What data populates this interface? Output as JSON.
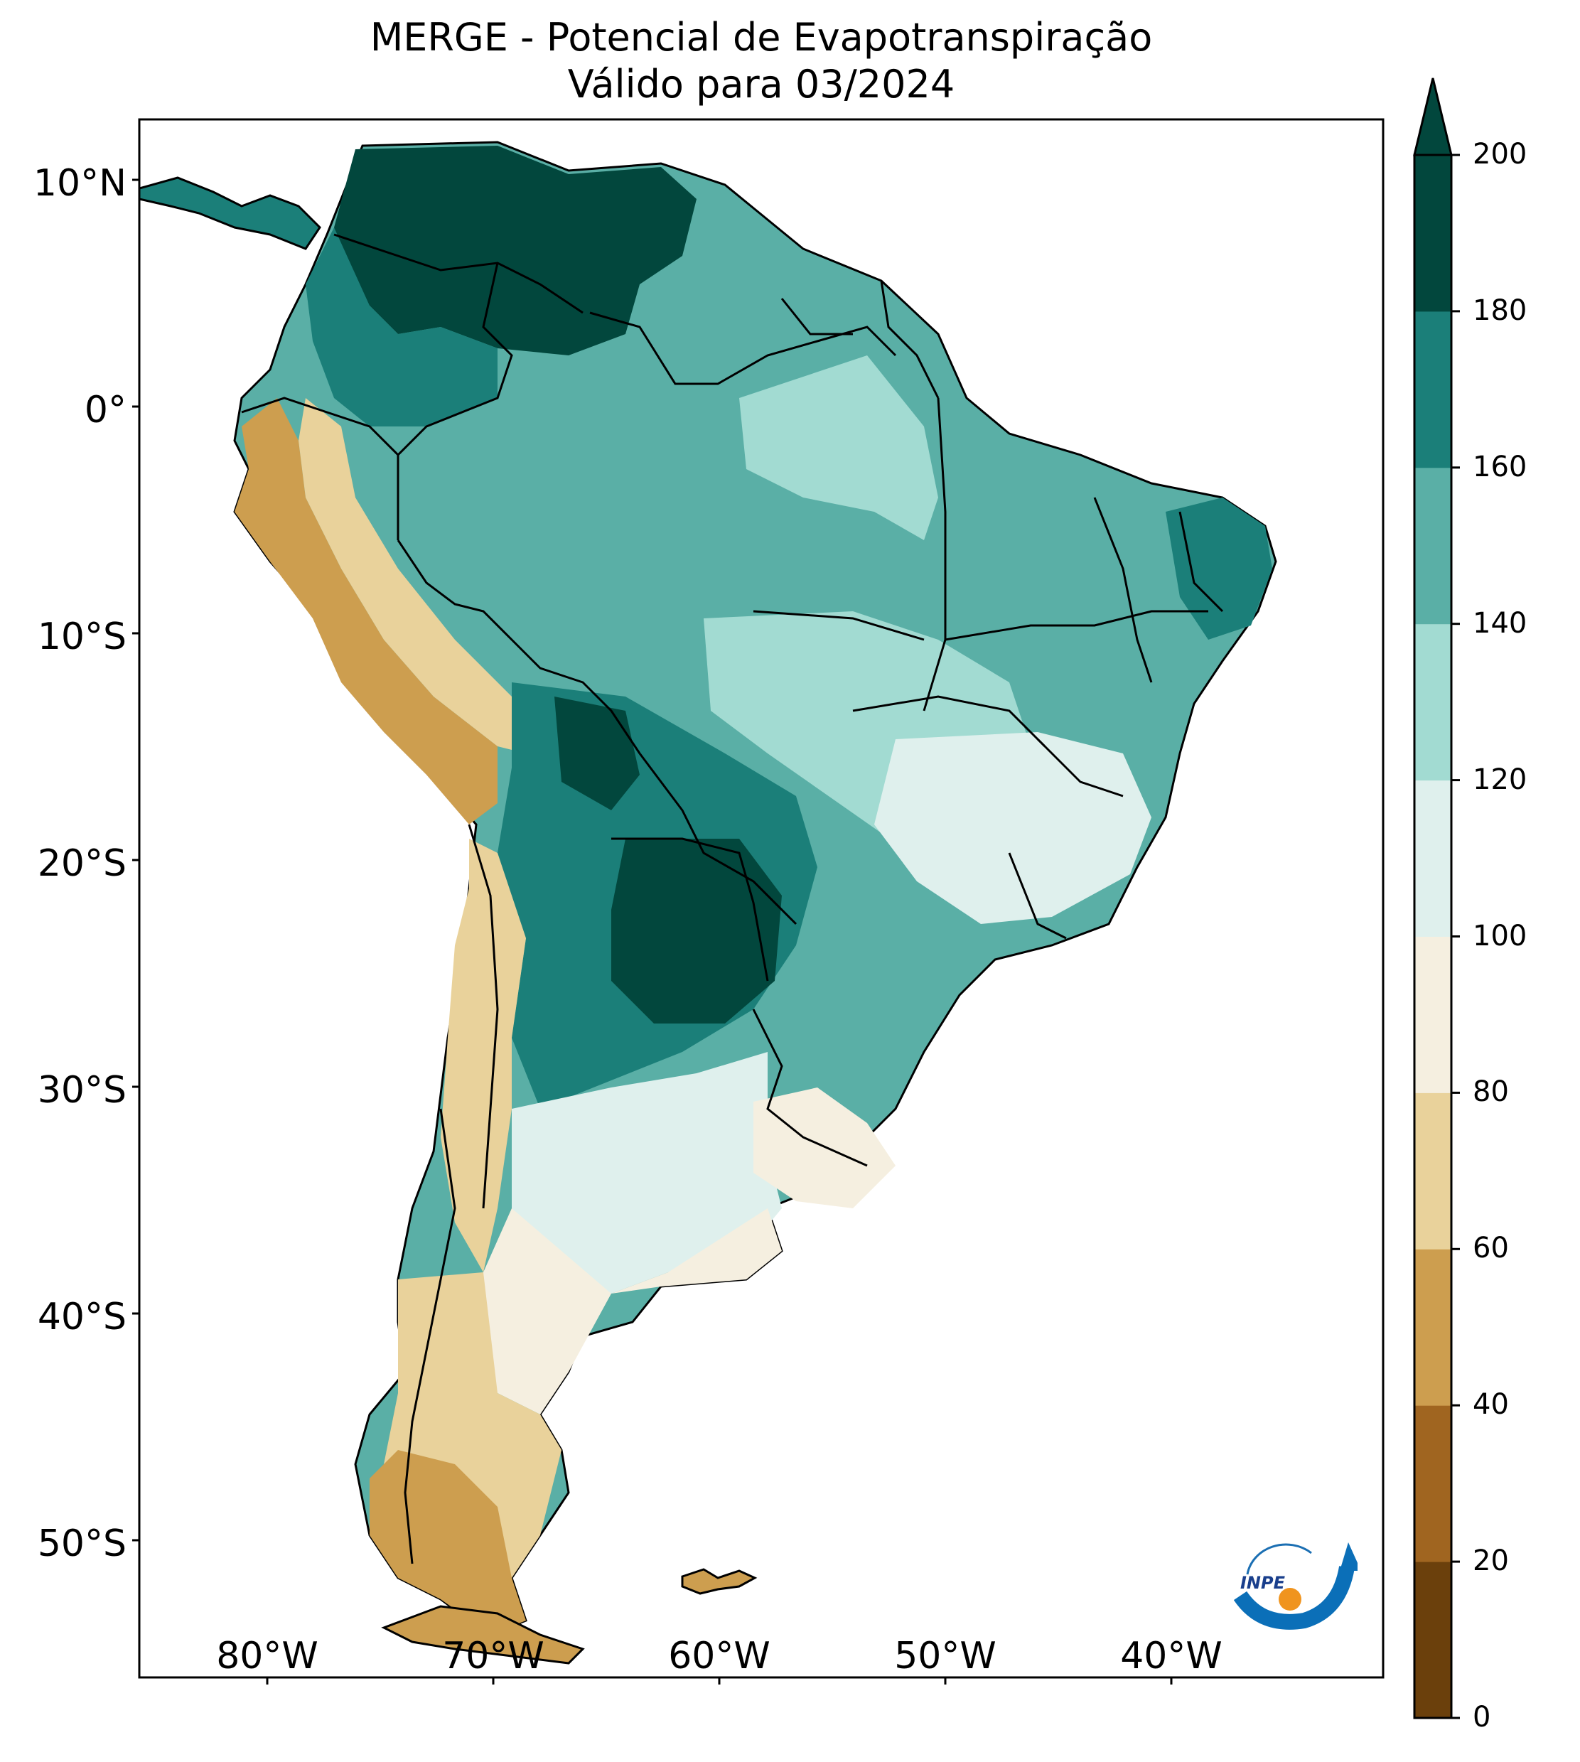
{
  "title": "MERGE - Potencial de Evapotranspiração",
  "subtitle": "Válido para 03/2024",
  "map": {
    "region": "South America",
    "lon_range": [
      -85,
      -30
    ],
    "lat_range": [
      -56,
      13
    ],
    "lat_ticks": [
      "10°N",
      "0°",
      "10°S",
      "20°S",
      "30°S",
      "40°S",
      "50°S"
    ],
    "lon_ticks": [
      "80°W",
      "70°W",
      "60°W",
      "50°W",
      "40°W"
    ],
    "logo_text": "INPE"
  },
  "colorbar": {
    "ticks": [
      "0",
      "20",
      "40",
      "60",
      "80",
      "100",
      "120",
      "140",
      "160",
      "180",
      "200"
    ],
    "colors": [
      "#6b400c",
      "#a06520",
      "#cd9e4f",
      "#e9d29b",
      "#f5efe0",
      "#dff0ed",
      "#a2dbd2",
      "#5aafa6",
      "#1b7f79",
      "#02473d"
    ],
    "extend": "max"
  }
}
